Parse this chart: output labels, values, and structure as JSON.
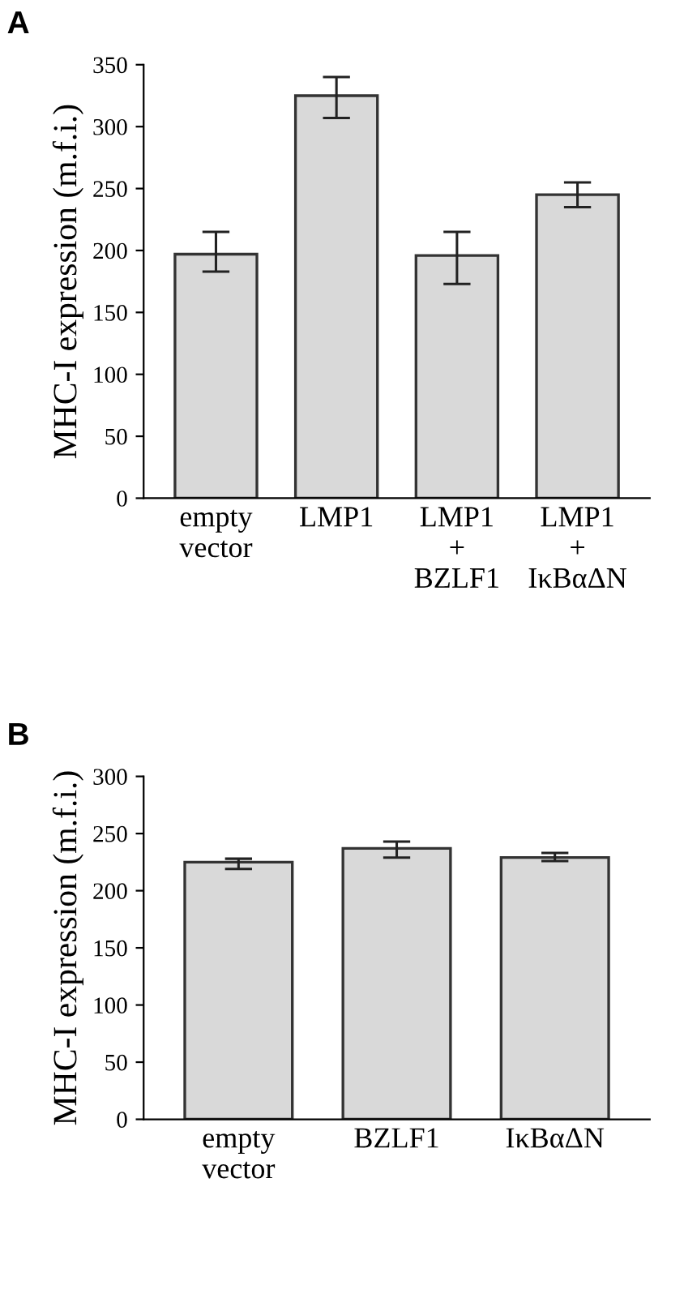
{
  "chart_data": [
    {
      "type": "bar",
      "title": "A",
      "ylabel": "MHC-I expression (m.f.i.)",
      "categories": [
        "empty\nvector",
        "LMP1",
        "LMP1\n+\nBZLF1",
        "LMP1\n+\nIκBαΔN"
      ],
      "values": [
        197,
        325,
        196,
        245
      ],
      "errors": [
        [
          183,
          215
        ],
        [
          307,
          340
        ],
        [
          173,
          215
        ],
        [
          235,
          255
        ]
      ],
      "color": "#d9d9d9",
      "ylim": [
        0,
        350
      ],
      "yticks": [
        0,
        50,
        100,
        150,
        200,
        250,
        300,
        350
      ],
      "grid": false
    },
    {
      "type": "bar",
      "title": "B",
      "ylabel": "MHC-I expression (m.f.i.)",
      "categories": [
        "empty\nvector",
        "BZLF1",
        "IκBαΔN"
      ],
      "values": [
        225,
        237,
        229
      ],
      "errors": [
        [
          219,
          228
        ],
        [
          229,
          243
        ],
        [
          226,
          233
        ]
      ],
      "color": "#d9d9d9",
      "ylim": [
        0,
        300
      ],
      "yticks": [
        0,
        50,
        100,
        150,
        200,
        250,
        300
      ],
      "grid": false
    }
  ]
}
